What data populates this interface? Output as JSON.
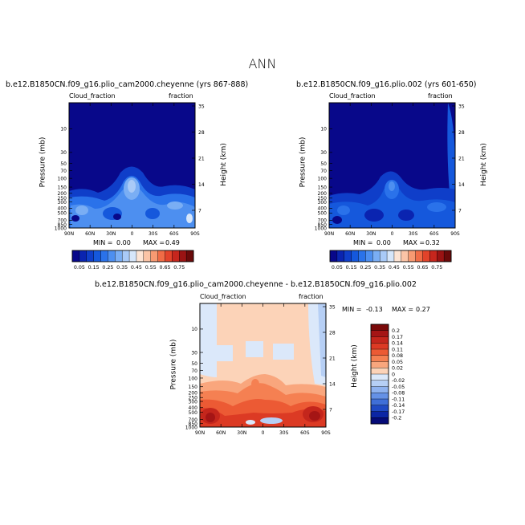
{
  "page_title": "ANN",
  "panels": [
    {
      "title": "b.e12.B1850CN.f09_g16.plio_cam2000.cheyenne (yrs 867-888)",
      "left_label": "Cloud_fraction",
      "right_label": "fraction",
      "ylabel": "Pressure (mb)",
      "ylabel_right": "Height (km)",
      "min_label": "MIN =",
      "min_value": "0.00",
      "max_label": "MAX =",
      "max_value": "0.49"
    },
    {
      "title": "b.e12.B1850CN.f09_g16.plio.002 (yrs 601-650)",
      "left_label": "Cloud_fraction",
      "right_label": "fraction",
      "ylabel": "Pressure (mb)",
      "ylabel_right": "Height (km)",
      "min_label": "MIN =",
      "min_value": "0.00",
      "max_label": "MAX =",
      "max_value": "0.32"
    },
    {
      "title": "b.e12.B1850CN.f09_g16.plio_cam2000.cheyenne - b.e12.B1850CN.f09_g16.plio.002",
      "left_label": "Cloud_fraction",
      "right_label": "fraction",
      "ylabel": "Pressure (mb)",
      "ylabel_right": "Height (km)",
      "min_label": "MIN =",
      "min_value": "-0.13",
      "max_label": "MAX =",
      "max_value": "0.27"
    }
  ],
  "chart_data": [
    {
      "type": "heatmap",
      "x_ticks": [
        "90N",
        "60N",
        "30N",
        "0",
        "30S",
        "60S",
        "90S"
      ],
      "y_ticks": [
        "10",
        "30",
        "50",
        "70",
        "100",
        "150",
        "200",
        "250",
        "300",
        "400",
        "500",
        "700",
        "850",
        "1000"
      ],
      "y_ticks_right": [
        "35",
        "28",
        "21",
        "14",
        "7"
      ],
      "ylog": true,
      "colorbar": {
        "labels": [
          "0.05",
          "0.15",
          "0.25",
          "0.35",
          "0.45",
          "0.55",
          "0.65",
          "0.75"
        ],
        "colors": [
          "#08088a",
          "#0a24b0",
          "#0f3ec9",
          "#1558dc",
          "#2a72ea",
          "#4d8ff0",
          "#7aaef4",
          "#a9caf7",
          "#d6e6fa",
          "#fde4d4",
          "#fbc4a6",
          "#f79a72",
          "#f06c46",
          "#e2432a",
          "#c6261d",
          "#9a1313",
          "#6a0a0a"
        ]
      }
    },
    {
      "type": "heatmap",
      "x_ticks": [
        "90N",
        "60N",
        "30N",
        "0",
        "30S",
        "60S",
        "90S"
      ],
      "y_ticks": [
        "10",
        "30",
        "50",
        "70",
        "100",
        "150",
        "200",
        "250",
        "300",
        "400",
        "500",
        "700",
        "850",
        "1000"
      ],
      "y_ticks_right": [
        "35",
        "28",
        "21",
        "14",
        "7"
      ],
      "ylog": true
    },
    {
      "type": "heatmap",
      "x_ticks": [
        "90N",
        "60N",
        "30N",
        "0",
        "30S",
        "60S",
        "90S"
      ],
      "y_ticks": [
        "10",
        "30",
        "50",
        "70",
        "100",
        "150",
        "200",
        "250",
        "300",
        "400",
        "500",
        "700",
        "850",
        "1000"
      ],
      "y_ticks_right": [
        "35",
        "28",
        "21",
        "14",
        "7"
      ],
      "ylog": true,
      "colorbar": {
        "labels": [
          "0.2",
          "0.17",
          "0.14",
          "0.11",
          "0.08",
          "0.05",
          "0.02",
          "0",
          "-0.02",
          "-0.05",
          "-0.08",
          "-0.11",
          "-0.14",
          "-0.17",
          "-0.2"
        ],
        "colors": [
          "#7a0a0a",
          "#a51515",
          "#c4261c",
          "#dc3a24",
          "#ec5a34",
          "#f58052",
          "#f9a67d",
          "#fcd3b8",
          "#dbe8fa",
          "#b6cff5",
          "#8fb2ef",
          "#6591e6",
          "#3f6fd8",
          "#1f4ac4",
          "#0b25a4",
          "#050b78"
        ]
      }
    }
  ]
}
